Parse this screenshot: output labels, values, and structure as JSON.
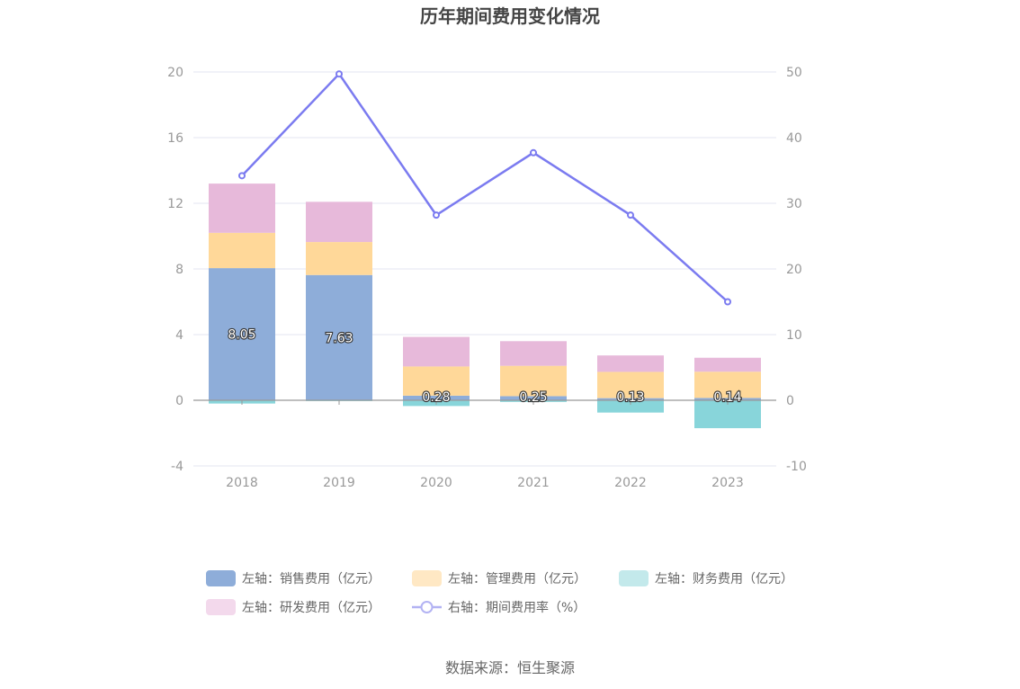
{
  "chart_data": {
    "type": "bar",
    "title": "历年期间费用变化情况",
    "categories": [
      "2018",
      "2019",
      "2020",
      "2021",
      "2022",
      "2023"
    ],
    "stacked": true,
    "y_left": {
      "ylim": [
        -4,
        20
      ],
      "ticks": [
        -4,
        0,
        4,
        8,
        12,
        16,
        20
      ]
    },
    "y_right": {
      "ylim": [
        -10,
        50
      ],
      "ticks": [
        -10,
        0,
        10,
        20,
        30,
        40,
        50
      ]
    },
    "grid": true,
    "legend_position": "bottom",
    "series": [
      {
        "name": "左轴：销售费用（亿元）",
        "type": "bar",
        "axis": "left",
        "color": "#8eadd9",
        "values": [
          8.05,
          7.63,
          0.28,
          0.25,
          0.13,
          0.14
        ],
        "labels": [
          "8.05",
          "7.63",
          "0.28",
          "0.25",
          "0.13",
          "0.14"
        ]
      },
      {
        "name": "左轴：管理费用（亿元）",
        "type": "bar",
        "axis": "left",
        "color": "#ffd899",
        "values": [
          2.15,
          2.01,
          1.78,
          1.85,
          1.6,
          1.6
        ]
      },
      {
        "name": "左轴：财务费用（亿元）",
        "type": "bar",
        "axis": "left",
        "color": "#88d5da",
        "values": [
          -0.2,
          -0.05,
          -0.35,
          -0.1,
          -0.75,
          -1.7
        ]
      },
      {
        "name": "左轴：研发费用（亿元）",
        "type": "bar",
        "axis": "left",
        "color": "#e7b9da",
        "values": [
          3.0,
          2.45,
          1.8,
          1.5,
          1.0,
          0.85
        ]
      },
      {
        "name": "右轴：期间费用率（%）",
        "type": "line",
        "axis": "right",
        "color": "#7b7bf0",
        "values": [
          34.2,
          49.7,
          28.2,
          37.7,
          28.2,
          15.0
        ]
      }
    ]
  },
  "legend_items": [
    {
      "label": "左轴：销售费用（亿元）",
      "icon": "rect",
      "color": "#8eadd9"
    },
    {
      "label": "左轴：管理费用（亿元）",
      "icon": "rect",
      "color": "#ffe8c4"
    },
    {
      "label": "左轴：财务费用（亿元）",
      "icon": "rect",
      "color": "#c3e9eb"
    },
    {
      "label": "左轴：研发费用（亿元）",
      "icon": "rect",
      "color": "#f3d9ec"
    },
    {
      "label": "右轴：期间费用率（%）",
      "icon": "line-circle",
      "color": "#b3b3f3"
    }
  ],
  "source_text": "数据来源：恒生聚源"
}
